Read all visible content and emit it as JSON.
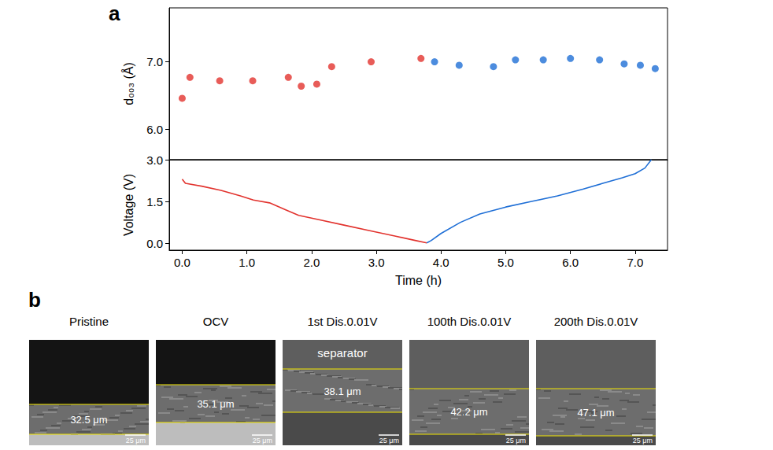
{
  "panel_labels": [
    "a",
    "b"
  ],
  "chart_data": [
    {
      "type": "scatter",
      "ylabel": "d₀₀₃ (Å)",
      "xlim": [
        -0.2,
        7.5
      ],
      "xticks": [
        {
          "value": 0,
          "label": "0.0"
        },
        {
          "value": 1,
          "label": "1.0"
        },
        {
          "value": 2,
          "label": "2.0"
        },
        {
          "value": 3,
          "label": "3.0"
        },
        {
          "value": 4,
          "label": "4.0"
        },
        {
          "value": 5,
          "label": "5.0"
        },
        {
          "value": 6,
          "label": "6.0"
        },
        {
          "value": 7,
          "label": "7.0"
        }
      ],
      "ylim": [
        5.55,
        7.8
      ],
      "yticks": [
        {
          "value": 6,
          "label": "6.0"
        },
        {
          "value": 7,
          "label": "7.0"
        }
      ],
      "tick_labels": "y",
      "series": [
        {
          "color": "#e2332e",
          "x": [
            0.0,
            0.12,
            0.58,
            1.09,
            1.64,
            1.84,
            2.08,
            2.31,
            2.92,
            3.69
          ],
          "values": [
            6.46,
            6.77,
            6.72,
            6.72,
            6.77,
            6.64,
            6.67,
            6.93,
            7.0,
            7.05
          ]
        },
        {
          "color": "#1f6fd6",
          "x": [
            3.9,
            4.28,
            4.81,
            5.15,
            5.58,
            6.0,
            6.45,
            6.83,
            7.08,
            7.31
          ],
          "values": [
            7.0,
            6.95,
            6.93,
            7.03,
            7.03,
            7.05,
            7.03,
            6.97,
            6.95,
            6.9
          ]
        }
      ]
    },
    {
      "type": "line",
      "xlabel": "Time (h)",
      "ylabel": "Voltage (V)",
      "xlim": [
        -0.2,
        7.5
      ],
      "xticks": [
        {
          "value": 0,
          "label": "0.0"
        },
        {
          "value": 1,
          "label": "1.0"
        },
        {
          "value": 2,
          "label": "2.0"
        },
        {
          "value": 3,
          "label": "3.0"
        },
        {
          "value": 4,
          "label": "4.0"
        },
        {
          "value": 5,
          "label": "5.0"
        },
        {
          "value": 6,
          "label": "6.0"
        },
        {
          "value": 7,
          "label": "7.0"
        }
      ],
      "ylim": [
        -0.25,
        3.0
      ],
      "yticks": [
        {
          "value": 0,
          "label": "0.0"
        },
        1.5,
        {
          "value": 3,
          "label": "3.0"
        }
      ],
      "series": [
        {
          "color": "#e2332e",
          "x": [
            0.0,
            0.05,
            0.3,
            0.6,
            0.9,
            1.1,
            1.35,
            1.6,
            1.8,
            2.1,
            2.5,
            2.9,
            3.3,
            3.6,
            3.78
          ],
          "values": [
            2.3,
            2.15,
            2.05,
            1.9,
            1.7,
            1.55,
            1.45,
            1.2,
            1.0,
            0.85,
            0.65,
            0.45,
            0.25,
            0.1,
            0.01
          ]
        },
        {
          "color": "#1f6fd6",
          "x": [
            3.78,
            3.85,
            4.0,
            4.3,
            4.6,
            5.0,
            5.4,
            5.8,
            6.2,
            6.5,
            6.8,
            7.0,
            7.15,
            7.25
          ],
          "values": [
            0.01,
            0.1,
            0.35,
            0.75,
            1.05,
            1.3,
            1.5,
            1.7,
            1.95,
            2.15,
            2.35,
            2.5,
            2.7,
            3.0
          ]
        }
      ]
    }
  ],
  "sem_images": [
    {
      "title": "Pristine",
      "thickness": "32.5 μm",
      "scale_bar": "25 μm"
    },
    {
      "title": "OCV",
      "thickness": "35.1 μm",
      "scale_bar": "25 μm"
    },
    {
      "title": "1st Dis.0.01V",
      "thickness": "38.1 μm",
      "scale_bar": "25 μm",
      "annotation": "separator"
    },
    {
      "title": "100th Dis.0.01V",
      "thickness": "42.2 μm",
      "scale_bar": "25 μm"
    },
    {
      "title": "200th Dis.0.01V",
      "thickness": "47.1 μm",
      "scale_bar": "25 μm"
    }
  ]
}
